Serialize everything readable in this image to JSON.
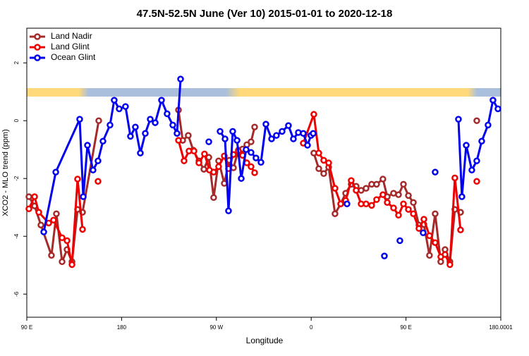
{
  "chart_data": {
    "type": "line",
    "title": "47.5N-52.5N June (Ver 10)   2015-01-01 to 2020-12-18",
    "x_label": "Longitude",
    "y_label": "XCO2 - MLO trend (ppm)",
    "xlim": [
      90,
      540
    ],
    "xticks": [
      {
        "value": 90,
        "label": "90 E"
      },
      180,
      {
        "value": 270,
        "label": "90 W"
      },
      {
        "value": 360,
        "label": "0"
      },
      {
        "value": 450,
        "label": "90 E"
      },
      180.0001
    ],
    "ylim": [
      -6.8,
      3.2
    ],
    "yticks": [
      -6,
      -4,
      -2,
      0,
      2
    ],
    "legend": "upper left",
    "series": [
      {
        "name": "Land Nadir",
        "color": "#a52a2a",
        "x": [
          92,
          97.4,
          103.4,
          113.4,
          118.1,
          123.5,
          128.2,
          132.9,
          138.2,
          142.9,
          158.3,
          null,
          234,
          238,
          243.3,
          248,
          253.4,
          258.1,
          262.8,
          267.4,
          272.1,
          277.5,
          282.2,
          286.2,
          290.9,
          294.9,
          298.9,
          302.9,
          306.3,
          null,
          362.5,
          367.2,
          371.9,
          376.6,
          382.6,
          388,
          392.7,
          398,
          402.7,
          407.4,
          412.1,
          417.4,
          422.1,
          428.1,
          432.2,
          438.2,
          442.9,
          447.6,
          452.3,
          457,
          462.3,
          467,
          472.3,
          477.7,
          483,
          487.1,
          491.7,
          496.4,
          501.8,
          null,
          517.2
        ],
        "values": [
          -2.63,
          -2.95,
          -3.61,
          -4.66,
          -3.22,
          -4.88,
          -4.46,
          -4.88,
          -3.07,
          -3.17,
          0,
          null,
          0.37,
          -0.68,
          -0.51,
          -1.02,
          -1.39,
          -1.68,
          -1.27,
          -2.66,
          -1.39,
          -2.17,
          -1.37,
          -1.63,
          -1.02,
          -0.98,
          -0.83,
          -0.73,
          -0.22,
          null,
          -1.12,
          -1.66,
          -1.83,
          -1.61,
          -3.22,
          -2.88,
          -2.51,
          -2.2,
          -2.27,
          -2.41,
          -2.34,
          -2.2,
          -2.2,
          -2.02,
          -2.63,
          -2.51,
          -2.56,
          -2.2,
          -2.59,
          -2.83,
          -3.61,
          -3.59,
          -4.66,
          -3.22,
          -4.88,
          -4.46,
          -4.88,
          -3.07,
          -3.17,
          null,
          0
        ]
      },
      {
        "name": "Land Glint",
        "color": "#ee0000",
        "x": [
          92,
          97.4,
          101.4,
          110.8,
          115.4,
          123.5,
          128.2,
          132.9,
          138.2,
          142.9,
          null,
          157.6,
          null,
          234,
          239.3,
          244,
          248.7,
          253.4,
          258.7,
          263.4,
          267.4,
          272.1,
          277.5,
          281.5,
          286.2,
          290.9,
          294.9,
          298.9,
          302.9,
          306.3,
          null,
          352.5,
          362.5,
          367.2,
          371.9,
          376.6,
          382.6,
          388,
          392.7,
          398,
          402.7,
          407.4,
          412.1,
          417.4,
          422.1,
          428.1,
          432.2,
          438.2,
          442.9,
          447.6,
          452.3,
          457,
          462.3,
          467,
          472.3,
          477.7,
          483,
          487.1,
          491.7,
          496.4,
          501.8,
          null,
          517.2
        ],
        "values": [
          -3.05,
          -2.63,
          -3.17,
          -3.54,
          -3.44,
          -4.05,
          -4.15,
          -4.98,
          -2.02,
          -3.76,
          null,
          -2.1,
          null,
          -0.68,
          -1.39,
          -1.05,
          -1.05,
          -1.46,
          -1.15,
          -1.71,
          -1.78,
          -1.59,
          -1.22,
          -1.66,
          -1.17,
          -1.05,
          -1.2,
          -1.46,
          -1.59,
          -1.8,
          null,
          -0.78,
          0.22,
          -1.12,
          -1.37,
          -1.46,
          -2.34,
          -2.88,
          -2.76,
          -2.07,
          -2.41,
          -2.88,
          -2.88,
          -2.93,
          -2.73,
          -2.56,
          -2.83,
          -3.02,
          -3.27,
          -2.88,
          -3.07,
          -3.22,
          -3.73,
          -3.41,
          -3.98,
          -4.22,
          -4.71,
          -4.63,
          -4.98,
          -1.98,
          -3.78,
          null,
          -2.1
        ]
      },
      {
        "name": "Ocean Glint",
        "color": "#0000ee",
        "x": [
          106.1,
          117.5,
          140.2,
          143.6,
          147.6,
          152.9,
          157.6,
          162.3,
          169,
          173,
          177.7,
          183.7,
          188.4,
          193.1,
          197.8,
          202.5,
          207.2,
          211.9,
          217.9,
          223.2,
          228.6,
          232.6,
          236,
          null,
          262.8,
          null,
          273.5,
          278.2,
          281.5,
          285.5,
          289.6,
          293.6,
          298.2,
          302.9,
          307.6,
          312.3,
          317,
          322.4,
          327,
          332.4,
          338.4,
          343.1,
          347.8,
          352.5,
          356.5,
          359.8,
          361.9,
          null,
          394,
          null,
          429.5,
          null,
          444.2,
          null,
          466.3,
          null,
          477.7,
          null,
          499.8,
          503.1,
          507.2,
          512.5,
          517.2,
          521.9,
          527.9,
          532.6,
          537.3
        ],
        "values": [
          -3.85,
          -1.78,
          0.05,
          -2.63,
          -0.85,
          -1.71,
          -1.39,
          -0.71,
          -0.15,
          0.71,
          0.41,
          0.49,
          -0.54,
          -0.22,
          -1.12,
          -0.44,
          0.05,
          -0.07,
          0.71,
          0.24,
          -0.15,
          -0.44,
          1.44,
          null,
          -0.73,
          null,
          -0.37,
          -0.63,
          -3.12,
          -0.37,
          -0.68,
          -2.0,
          -1.0,
          -1.1,
          -1.29,
          -1.44,
          -0.12,
          -0.63,
          -0.51,
          -0.37,
          -0.17,
          -0.63,
          -0.41,
          -0.44,
          -0.85,
          -0.51,
          -0.44,
          null,
          -2.88,
          null,
          -4.68,
          null,
          -4.15,
          null,
          -3.88,
          null,
          -1.78,
          null,
          0.05,
          -2.63,
          -0.85,
          -1.71,
          -1.39,
          -0.71,
          -0.15,
          0.71,
          0.41
        ]
      }
    ]
  }
}
